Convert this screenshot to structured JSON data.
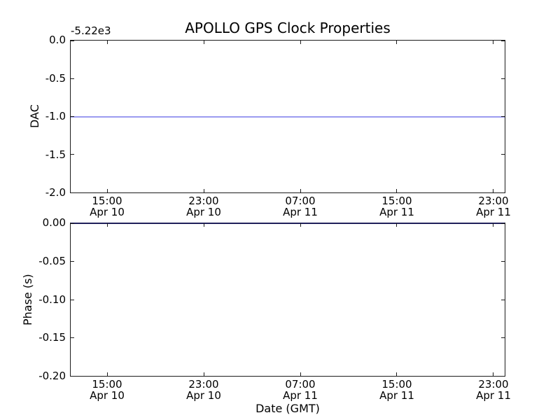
{
  "figure": {
    "title": "APOLLO GPS Clock Properties",
    "background": "#ffffff"
  },
  "colors": {
    "data_line_blue": "#9b9bf0",
    "phase_line_on_spine": "#20205a",
    "spine": "#1c1c1c",
    "text": "#000000",
    "background": "#ffffff"
  },
  "chart_data": [
    {
      "type": "line",
      "title": "APOLLO GPS Clock Properties",
      "ylabel": "DAC",
      "xlabel": "",
      "y_offset_text": "-5.22e3",
      "ylim": [
        -2.0,
        0.0
      ],
      "yticks": [
        "0.0",
        "-0.5",
        "-1.0",
        "-1.5",
        "-2.0"
      ],
      "xtick_labels": [
        {
          "time": "15:00",
          "date": "Apr 10"
        },
        {
          "time": "23:00",
          "date": "Apr 10"
        },
        {
          "time": "07:00",
          "date": "Apr 11"
        },
        {
          "time": "15:00",
          "date": "Apr 11"
        },
        {
          "time": "23:00",
          "date": "Apr 11"
        }
      ],
      "grid": false,
      "legend": null,
      "series": [
        {
          "name": "DAC",
          "shape": "constant horizontal line spanning full x-range",
          "value": -1.0,
          "value_with_offset": -5221.0,
          "color": "#9b9bf0"
        }
      ]
    },
    {
      "type": "line",
      "title": "",
      "ylabel": "Phase (s)",
      "xlabel": "Date (GMT)",
      "ylim": [
        -0.2,
        0.0
      ],
      "yticks": [
        "0.00",
        "-0.05",
        "-0.10",
        "-0.15",
        "-0.20"
      ],
      "xtick_labels": [
        {
          "time": "15:00",
          "date": "Apr 10"
        },
        {
          "time": "23:00",
          "date": "Apr 10"
        },
        {
          "time": "07:00",
          "date": "Apr 11"
        },
        {
          "time": "15:00",
          "date": "Apr 11"
        },
        {
          "time": "23:00",
          "date": "Apr 11"
        }
      ],
      "grid": false,
      "legend": null,
      "series": [
        {
          "name": "Phase",
          "shape": "constant horizontal line spanning full x-range, overlapping top spine",
          "value": 0.0,
          "color": "#20205a"
        }
      ]
    }
  ]
}
